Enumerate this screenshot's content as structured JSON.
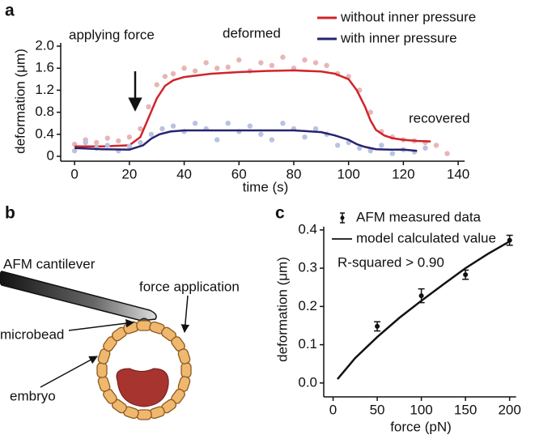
{
  "chart_data": [
    {
      "type": "line",
      "panel": "a",
      "x_label": "time (s)",
      "y_label": "deformation (μm)",
      "xlim": [
        -3,
        145
      ],
      "ylim": [
        0,
        2.0
      ],
      "xticks": [
        0,
        20,
        40,
        60,
        80,
        100,
        120,
        140
      ],
      "yticks": [
        0,
        0.4,
        0.8,
        1.2,
        1.6,
        {
          "value": 2.0,
          "label": "2.0"
        }
      ],
      "legend": "top-right",
      "annotations": [
        "applying force",
        "deformed",
        "recovered"
      ],
      "series": [
        {
          "name": "without inner pressure",
          "color": "#d0242b",
          "x": [
            0,
            10,
            20,
            24,
            27,
            30,
            33,
            36,
            40,
            50,
            60,
            70,
            80,
            90,
            95,
            100,
            103,
            106,
            108,
            110,
            113,
            116,
            120,
            125,
            130
          ],
          "values": [
            0.18,
            0.18,
            0.2,
            0.35,
            0.7,
            1.05,
            1.28,
            1.38,
            1.44,
            1.5,
            1.53,
            1.55,
            1.56,
            1.54,
            1.5,
            1.4,
            1.2,
            0.9,
            0.65,
            0.48,
            0.38,
            0.33,
            0.3,
            0.28,
            0.27
          ],
          "scatter": {
            "color": "#e8b5b5",
            "x": [
              0,
              4,
              8,
              12,
              16,
              20,
              24,
              27,
              30,
              33,
              36,
              40,
              44,
              48,
              52,
              56,
              60,
              64,
              68,
              72,
              76,
              80,
              84,
              88,
              92,
              96,
              100,
              104,
              108,
              112,
              116,
              120,
              124,
              128,
              132,
              136
            ],
            "values": [
              0.22,
              0.3,
              0.25,
              0.33,
              0.28,
              0.35,
              0.5,
              0.9,
              1.3,
              1.45,
              1.5,
              1.6,
              1.55,
              1.7,
              1.6,
              1.62,
              1.75,
              1.55,
              1.7,
              1.65,
              1.8,
              1.6,
              1.75,
              1.7,
              1.65,
              1.5,
              1.45,
              1.2,
              0.8,
              0.45,
              0.35,
              0.3,
              0.28,
              0.25,
              0.2,
              0.05
            ]
          }
        },
        {
          "name": "with inner pressure",
          "color": "#27246e",
          "x": [
            0,
            10,
            20,
            25,
            28,
            31,
            35,
            40,
            50,
            60,
            70,
            80,
            90,
            95,
            100,
            103,
            106,
            110,
            115,
            120,
            125
          ],
          "values": [
            0.15,
            0.13,
            0.12,
            0.2,
            0.32,
            0.4,
            0.45,
            0.47,
            0.47,
            0.47,
            0.47,
            0.47,
            0.44,
            0.38,
            0.3,
            0.22,
            0.17,
            0.13,
            0.12,
            0.12,
            0.1
          ],
          "scatter": {
            "color": "#b8c3e3",
            "x": [
              0,
              4,
              8,
              12,
              16,
              20,
              24,
              28,
              32,
              36,
              40,
              44,
              48,
              52,
              56,
              60,
              64,
              68,
              72,
              76,
              80,
              84,
              88,
              92,
              96,
              100,
              104,
              108,
              112,
              116,
              120,
              124,
              128
            ],
            "values": [
              0.1,
              0.25,
              0.15,
              0.2,
              0.1,
              0.18,
              0.25,
              0.4,
              0.5,
              0.55,
              0.45,
              0.6,
              0.5,
              0.3,
              0.6,
              0.45,
              0.55,
              0.4,
              0.3,
              0.6,
              0.5,
              0.35,
              0.5,
              0.4,
              0.2,
              0.25,
              0.15,
              0.1,
              0.2,
              0.05,
              0.12,
              0.08,
              0.15
            ]
          }
        }
      ]
    },
    {
      "type": "errorbar",
      "panel": "c",
      "x_label": "force (pN)",
      "y_label": "deformation (μm)",
      "xlim": [
        -6,
        215
      ],
      "ylim": [
        -0.03,
        0.44
      ],
      "xticks": [
        0,
        50,
        100,
        150,
        200
      ],
      "yticks": [
        {
          "value": 0,
          "label": "0.0"
        },
        0.1,
        0.2,
        0.3,
        0.4
      ],
      "legend": "top-left",
      "annotations": [
        "R-squared > 0.90"
      ],
      "series": [
        {
          "name": "AFM measured data",
          "color": "#111111",
          "type": "errorbar",
          "x": [
            50,
            100,
            150,
            200
          ],
          "values": [
            0.148,
            0.228,
            0.283,
            0.373
          ],
          "errors": [
            0.012,
            0.018,
            0.012,
            0.013
          ]
        },
        {
          "name": "model calculated value",
          "color": "#111111",
          "type": "line",
          "x": [
            5,
            25,
            50,
            75,
            100,
            125,
            150,
            175,
            200
          ],
          "values": [
            0.01,
            0.065,
            0.12,
            0.17,
            0.215,
            0.258,
            0.3,
            0.337,
            0.37
          ]
        }
      ]
    }
  ],
  "diagram": {
    "panel": "b",
    "labels": [
      "AFM cantilever",
      "force application",
      "microbead",
      "embryo"
    ]
  }
}
